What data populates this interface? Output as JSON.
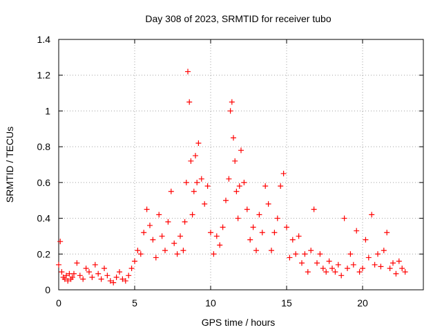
{
  "chart_data": {
    "type": "scatter",
    "title": "Day 308 of 2023, SRMTID for receiver tubo",
    "xlabel": "GPS time / hours",
    "ylabel": "SRMTID / TECUs",
    "xlim": [
      0,
      24
    ],
    "ylim": [
      0,
      1.4
    ],
    "xticks": [
      0,
      5,
      10,
      15,
      20
    ],
    "xtick_labels": [
      "0",
      "5",
      "10",
      "15",
      "20"
    ],
    "yticks": [
      0,
      0.2,
      0.4,
      0.6,
      0.8,
      1.0,
      1.2,
      1.4
    ],
    "ytick_labels": [
      "0",
      "0.2",
      "0.4",
      "0.6",
      "0.8",
      "1",
      "1.2",
      "1.4"
    ],
    "grid": true,
    "marker": "+",
    "color": "#ff0000",
    "series": [
      {
        "name": "SRMTID",
        "x": [
          0.0,
          0.1,
          0.2,
          0.3,
          0.4,
          0.5,
          0.6,
          0.7,
          0.8,
          0.9,
          1.0,
          1.2,
          1.4,
          1.6,
          1.8,
          2.0,
          2.2,
          2.4,
          2.6,
          2.8,
          3.0,
          3.2,
          3.4,
          3.6,
          3.8,
          4.0,
          4.2,
          4.4,
          4.6,
          4.8,
          5.0,
          5.2,
          5.4,
          5.6,
          5.8,
          6.0,
          6.2,
          6.4,
          6.6,
          6.8,
          7.0,
          7.2,
          7.4,
          7.6,
          7.8,
          8.0,
          8.2,
          8.3,
          8.4,
          8.5,
          8.6,
          8.7,
          8.8,
          8.9,
          9.0,
          9.1,
          9.2,
          9.4,
          9.6,
          9.8,
          10.0,
          10.2,
          10.4,
          10.6,
          10.8,
          11.0,
          11.2,
          11.3,
          11.4,
          11.5,
          11.6,
          11.7,
          11.8,
          11.9,
          12.0,
          12.2,
          12.4,
          12.6,
          12.8,
          13.0,
          13.2,
          13.4,
          13.6,
          13.8,
          14.0,
          14.2,
          14.4,
          14.6,
          14.8,
          15.0,
          15.2,
          15.4,
          15.6,
          15.8,
          16.0,
          16.2,
          16.4,
          16.6,
          16.8,
          17.0,
          17.2,
          17.4,
          17.6,
          17.8,
          18.0,
          18.2,
          18.4,
          18.6,
          18.8,
          19.0,
          19.2,
          19.4,
          19.6,
          19.8,
          20.0,
          20.2,
          20.4,
          20.6,
          20.8,
          21.0,
          21.2,
          21.4,
          21.6,
          21.8,
          22.0,
          22.2,
          22.4,
          22.6,
          22.8
        ],
        "y": [
          0.14,
          0.27,
          0.1,
          0.07,
          0.06,
          0.08,
          0.05,
          0.09,
          0.06,
          0.07,
          0.09,
          0.15,
          0.08,
          0.06,
          0.12,
          0.1,
          0.07,
          0.14,
          0.09,
          0.06,
          0.12,
          0.08,
          0.05,
          0.04,
          0.07,
          0.1,
          0.06,
          0.05,
          0.08,
          0.12,
          0.16,
          0.22,
          0.2,
          0.32,
          0.45,
          0.36,
          0.28,
          0.18,
          0.42,
          0.3,
          0.22,
          0.38,
          0.55,
          0.26,
          0.2,
          0.3,
          0.22,
          0.38,
          0.6,
          1.22,
          1.05,
          0.72,
          0.42,
          0.55,
          0.75,
          0.6,
          0.82,
          0.62,
          0.48,
          0.58,
          0.32,
          0.2,
          0.3,
          0.25,
          0.35,
          0.5,
          0.62,
          1.0,
          1.05,
          0.85,
          0.72,
          0.55,
          0.4,
          0.58,
          0.78,
          0.6,
          0.45,
          0.28,
          0.35,
          0.22,
          0.42,
          0.32,
          0.58,
          0.48,
          0.22,
          0.32,
          0.4,
          0.58,
          0.65,
          0.35,
          0.18,
          0.28,
          0.2,
          0.3,
          0.15,
          0.2,
          0.1,
          0.22,
          0.45,
          0.15,
          0.2,
          0.12,
          0.1,
          0.16,
          0.12,
          0.1,
          0.14,
          0.08,
          0.4,
          0.12,
          0.2,
          0.14,
          0.33,
          0.1,
          0.12,
          0.28,
          0.18,
          0.42,
          0.14,
          0.2,
          0.13,
          0.22,
          0.32,
          0.12,
          0.15,
          0.09,
          0.16,
          0.12,
          0.1
        ]
      }
    ]
  }
}
